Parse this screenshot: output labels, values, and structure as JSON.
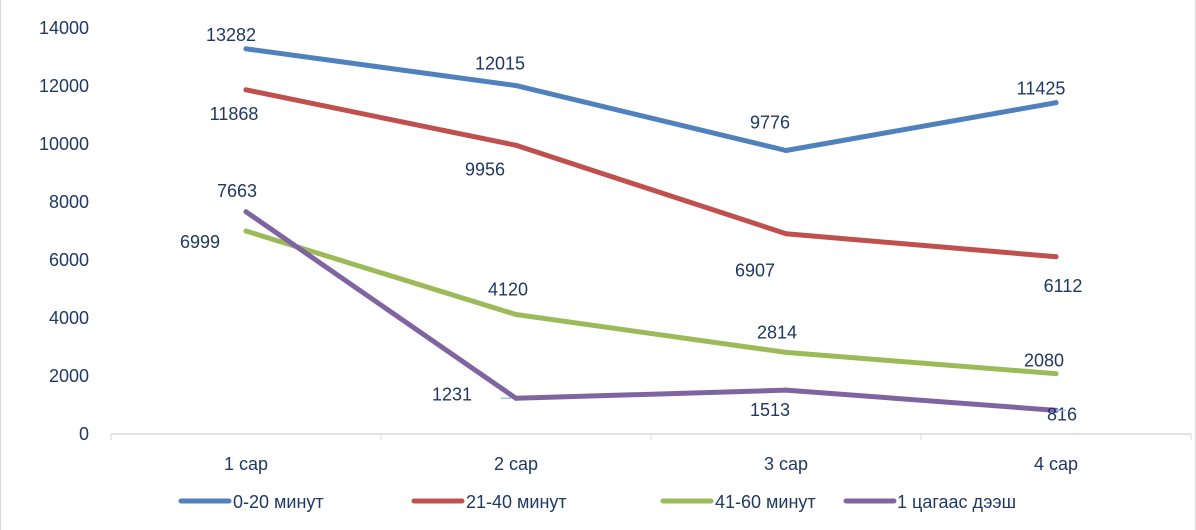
{
  "chart_data": {
    "type": "line",
    "title": "",
    "xlabel": "",
    "ylabel": "",
    "categories": [
      "1 сар",
      "2 сар",
      "3 сар",
      "4 сар"
    ],
    "ylim": [
      0,
      14000
    ],
    "yticks": [
      0,
      2000,
      4000,
      6000,
      8000,
      10000,
      12000,
      14000
    ],
    "grid": false,
    "legend_position": "bottom",
    "series": [
      {
        "name": "0-20 минут",
        "values": [
          13282,
          12015,
          9776,
          11425
        ],
        "color": "#4f81bd"
      },
      {
        "name": "21-40 минут",
        "values": [
          11868,
          9956,
          6907,
          6112
        ],
        "color": "#c0504d"
      },
      {
        "name": "41-60  минут",
        "values": [
          6999,
          4120,
          2814,
          2080
        ],
        "color": "#9bbb59"
      },
      {
        "name": "1 цагаас дээш",
        "values": [
          7663,
          1231,
          1513,
          816
        ],
        "color": "#8064a2"
      }
    ]
  }
}
